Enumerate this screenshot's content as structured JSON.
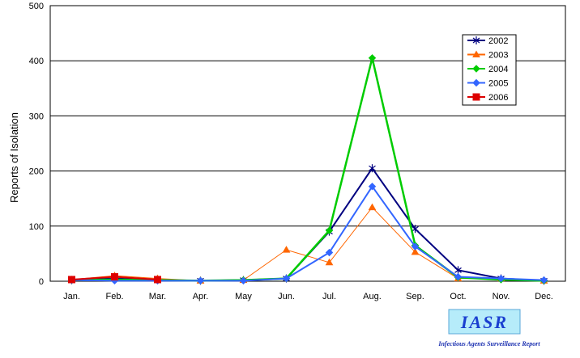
{
  "chart_data": {
    "type": "line",
    "title": "",
    "xlabel": "",
    "ylabel": "Reports of Isolation",
    "ylim": [
      0,
      500
    ],
    "yticks": [
      0,
      100,
      200,
      300,
      400,
      500
    ],
    "grid": "horizontal",
    "legend_position": "top-right",
    "categories": [
      "Jan.",
      "Feb.",
      "Mar.",
      "Apr.",
      "May",
      "Jun.",
      "Jul.",
      "Aug.",
      "Sep.",
      "Oct.",
      "Nov.",
      "Dec."
    ],
    "series": [
      {
        "name": "2002",
        "color": "#000080",
        "marker": "star",
        "values": [
          2,
          5,
          2,
          1,
          2,
          5,
          90,
          205,
          95,
          20,
          5,
          1
        ]
      },
      {
        "name": "2003",
        "color": "#ff6600",
        "marker": "triangle",
        "values": [
          3,
          10,
          5,
          1,
          2,
          57,
          34,
          134,
          53,
          5,
          5,
          1
        ]
      },
      {
        "name": "2004",
        "color": "#00cc00",
        "marker": "diamond",
        "values": [
          2,
          3,
          2,
          1,
          2,
          5,
          92,
          405,
          65,
          7,
          3,
          1
        ]
      },
      {
        "name": "2005",
        "color": "#3366ff",
        "marker": "diamond",
        "values": [
          2,
          1,
          1,
          1,
          1,
          5,
          52,
          172,
          63,
          8,
          5,
          2
        ]
      },
      {
        "name": "2006",
        "color": "#dd0000",
        "marker": "square",
        "values": [
          3,
          8,
          3,
          null,
          null,
          null,
          null,
          null,
          null,
          null,
          null,
          null
        ]
      }
    ]
  },
  "logo": {
    "text": "IASR",
    "subtitle": "Infectious Agents Surveillance Report"
  }
}
